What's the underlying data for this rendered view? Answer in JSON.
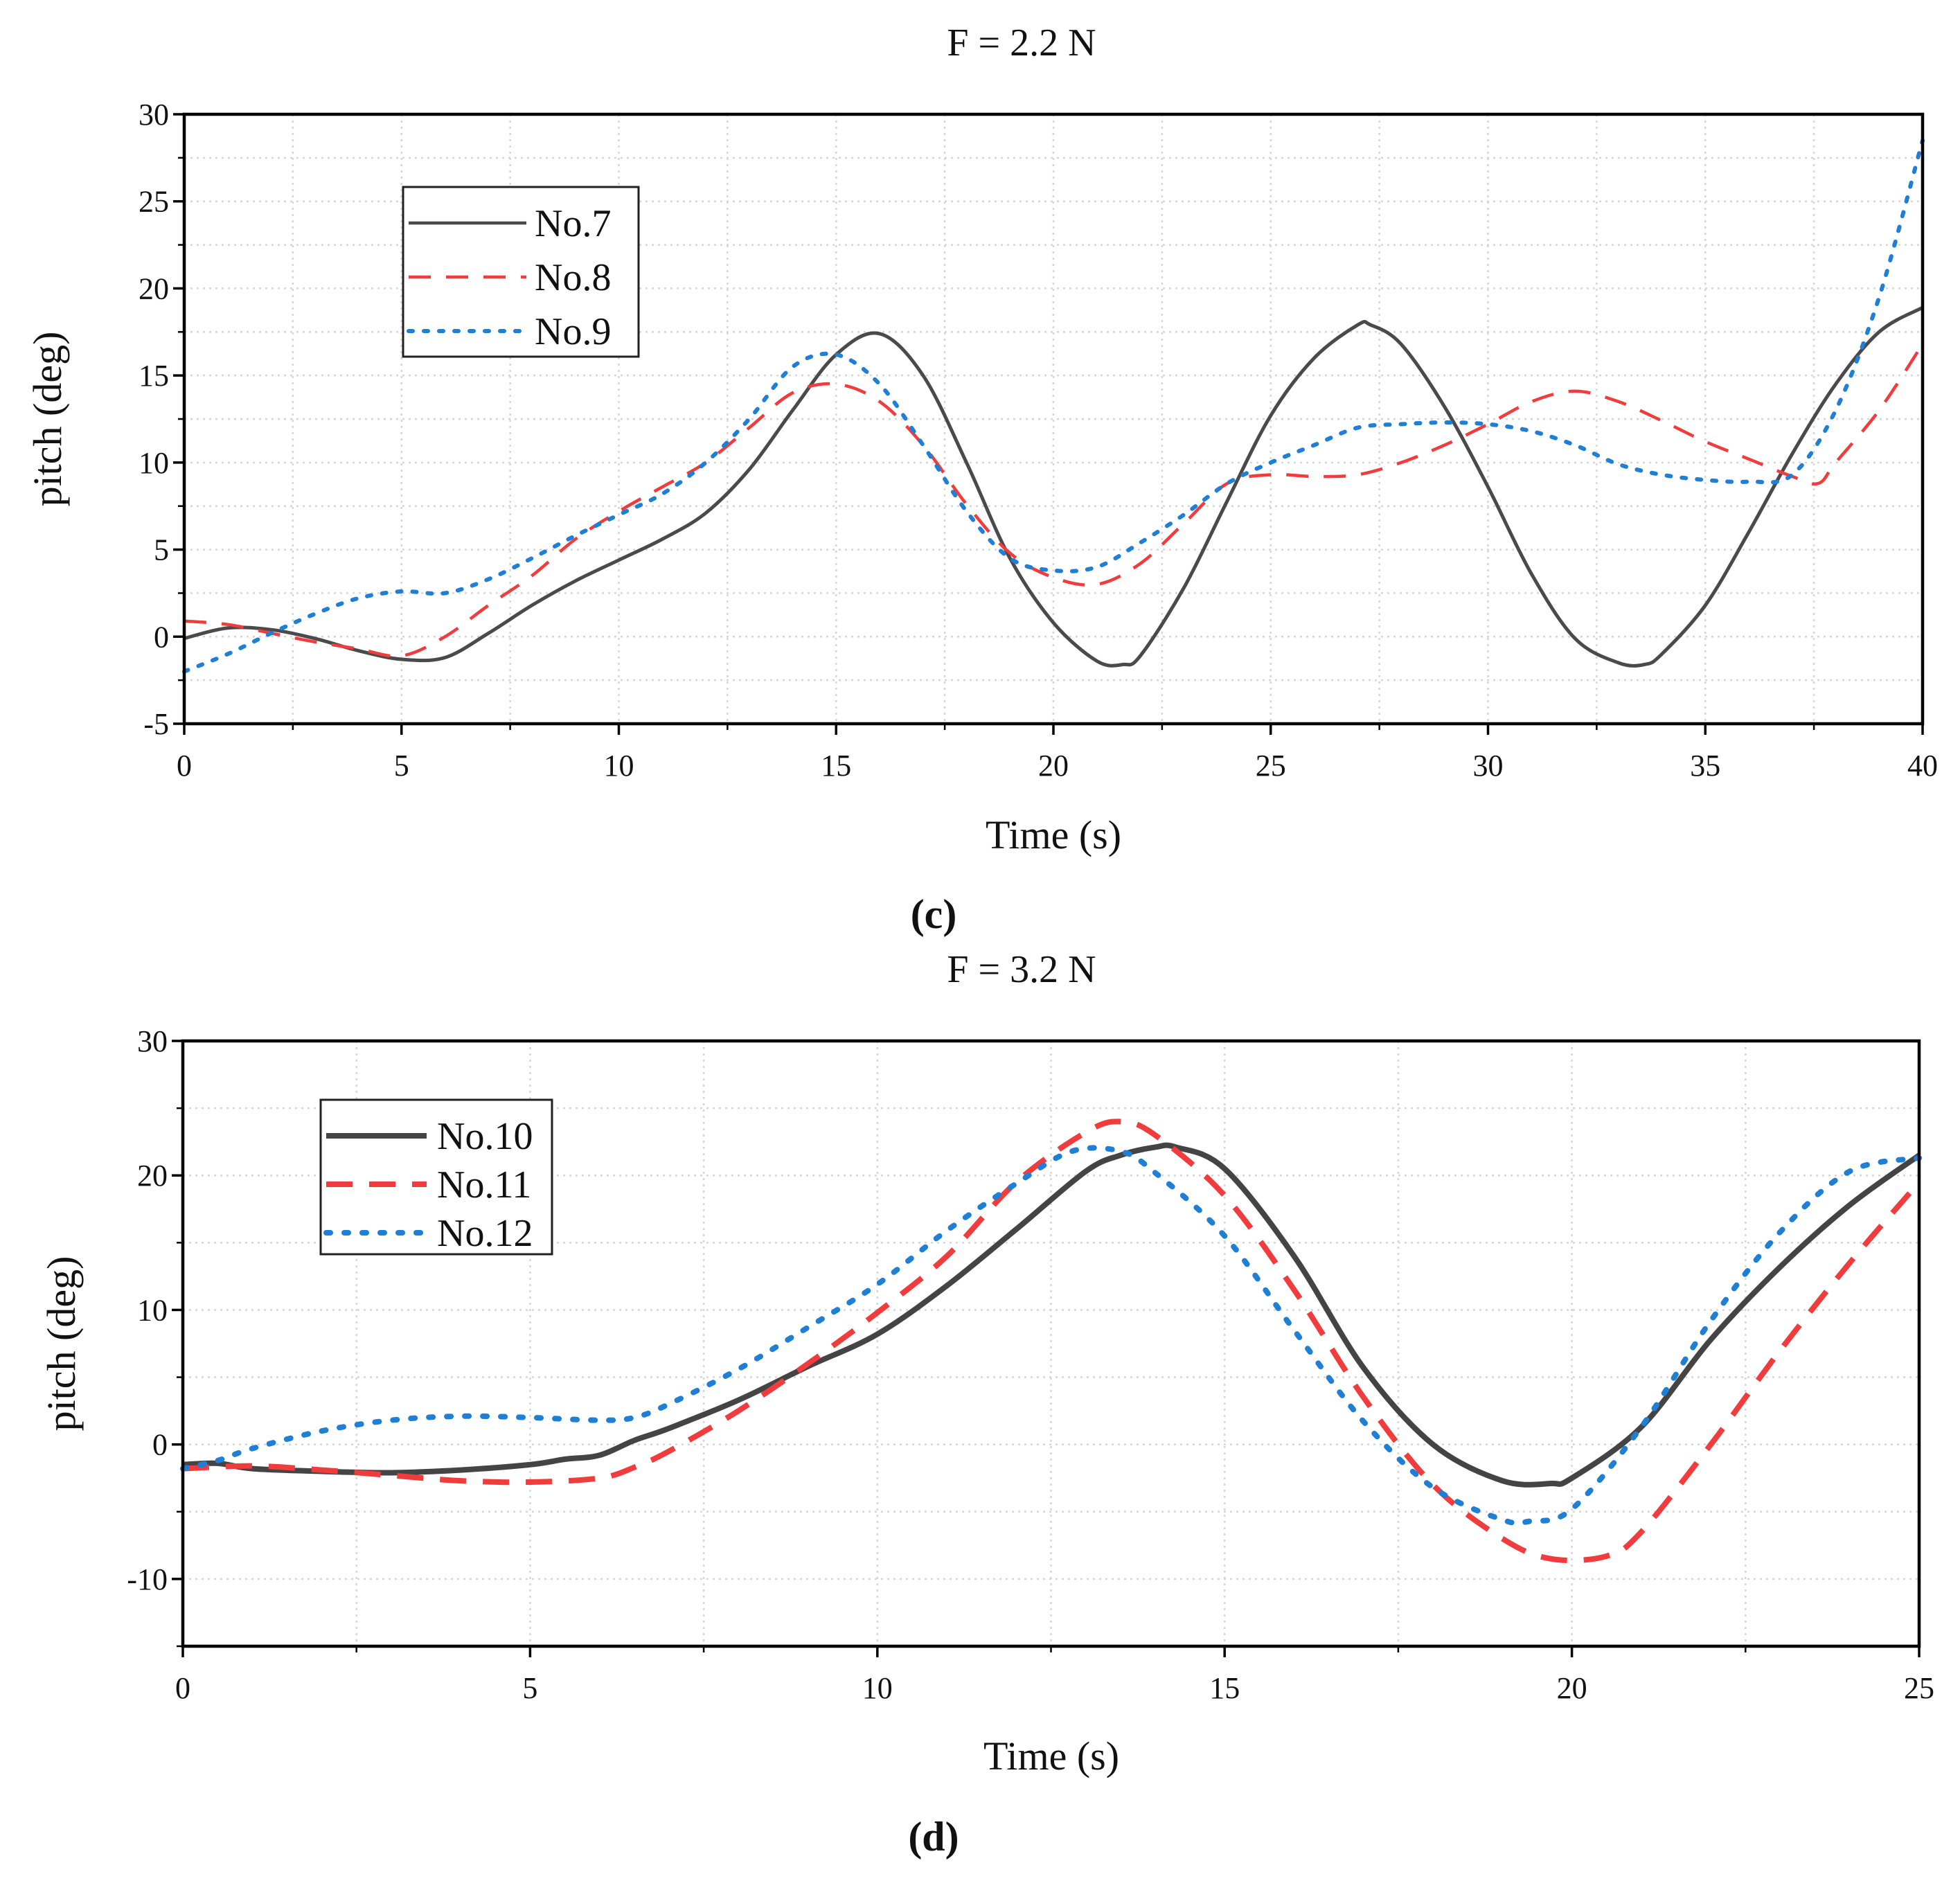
{
  "chart_data": [
    {
      "type": "line",
      "title": "F = 2.2 N",
      "panel_label": "(c)",
      "xlabel": "Time (s)",
      "ylabel": "pitch (deg)",
      "xlim": [
        0,
        40
      ],
      "ylim": [
        -5,
        30
      ],
      "xticks": [
        0,
        5,
        10,
        15,
        20,
        25,
        30,
        35,
        40
      ],
      "yticks": [
        -5,
        0,
        5,
        10,
        15,
        20,
        25,
        30
      ],
      "grid": true,
      "legend_position": "top-left",
      "series": [
        {
          "name": "No.7",
          "color": "#4a4a4a",
          "style": "solid",
          "x": [
            0,
            1,
            2,
            3,
            4,
            5,
            6,
            7,
            8,
            9,
            10,
            11,
            12,
            13,
            14,
            15,
            16,
            17,
            18,
            19,
            20,
            21,
            21.6,
            22,
            23,
            24,
            25,
            26,
            27,
            27.3,
            28,
            29,
            30,
            31,
            32,
            33,
            33.6,
            34,
            35,
            36,
            37,
            38,
            39,
            40
          ],
          "y": [
            -0.1,
            0.5,
            0.4,
            -0.1,
            -0.8,
            -1.3,
            -1.2,
            0.2,
            1.8,
            3.2,
            4.4,
            5.6,
            7.1,
            9.6,
            13.0,
            16.2,
            17.4,
            15.0,
            10.0,
            4.5,
            0.8,
            -1.4,
            -1.6,
            -1.1,
            2.8,
            7.8,
            12.7,
            16.0,
            17.9,
            17.9,
            16.8,
            13.2,
            8.6,
            3.6,
            -0.1,
            -1.5,
            -1.6,
            -1.0,
            1.8,
            6.0,
            10.5,
            14.5,
            17.5,
            18.9
          ]
        },
        {
          "name": "No.8",
          "color": "#f03c3c",
          "style": "dashed",
          "x": [
            0,
            1,
            2,
            3,
            4,
            5,
            6,
            7,
            8,
            9,
            10,
            11,
            12,
            13,
            14,
            15,
            16,
            17,
            18,
            19,
            20,
            21,
            22,
            23,
            24,
            25,
            26,
            27,
            28,
            29,
            30,
            31,
            32,
            33,
            34,
            35,
            36,
            37,
            37.6,
            38,
            39,
            40
          ],
          "y": [
            0.9,
            0.7,
            0.2,
            -0.3,
            -0.7,
            -1.1,
            0.0,
            1.8,
            3.5,
            5.6,
            7.2,
            8.6,
            10.0,
            12.0,
            14.0,
            14.5,
            13.5,
            11.0,
            7.6,
            4.8,
            3.4,
            3.0,
            4.2,
            6.5,
            8.8,
            9.3,
            9.2,
            9.3,
            10.0,
            11.0,
            12.2,
            13.5,
            14.1,
            13.5,
            12.4,
            11.2,
            10.2,
            9.2,
            8.8,
            10.0,
            13.0,
            16.8
          ]
        },
        {
          "name": "No.9",
          "color": "#1f7fd4",
          "style": "dotted",
          "x": [
            0,
            1,
            2,
            3,
            4,
            5,
            6,
            7,
            8,
            9,
            10,
            11,
            12,
            13,
            14,
            15,
            16,
            17,
            18,
            19,
            20,
            21,
            22,
            23,
            24,
            25,
            26,
            27,
            28,
            29,
            30,
            31,
            32,
            33,
            34,
            35,
            36,
            37,
            38,
            39,
            40
          ],
          "y": [
            -2.0,
            -1.0,
            0.2,
            1.3,
            2.2,
            2.6,
            2.5,
            3.3,
            4.5,
            5.8,
            7.0,
            8.2,
            10.0,
            12.5,
            15.5,
            16.2,
            14.5,
            11.0,
            7.2,
            4.5,
            3.8,
            4.0,
            5.4,
            7.0,
            8.8,
            10.0,
            11.0,
            12.0,
            12.2,
            12.3,
            12.2,
            11.8,
            11.0,
            9.9,
            9.3,
            9.0,
            8.9,
            9.3,
            13.0,
            19.5,
            28.5
          ]
        }
      ]
    },
    {
      "type": "line",
      "title": "F = 3.2 N",
      "panel_label": "(d)",
      "xlabel": "Time (s)",
      "ylabel": "pitch (deg)",
      "xlim": [
        0,
        25
      ],
      "ylim": [
        -15,
        30
      ],
      "xticks": [
        0,
        5,
        10,
        15,
        20,
        25
      ],
      "yticks": [
        -10,
        0,
        10,
        20,
        30
      ],
      "grid": true,
      "legend_position": "top-left",
      "series": [
        {
          "name": "No.10",
          "color": "#444444",
          "style": "solid",
          "x": [
            0,
            0.5,
            1,
            2,
            3,
            4,
            5,
            5.5,
            6,
            6.5,
            7,
            8,
            9,
            10,
            11,
            12,
            13,
            13.5,
            14,
            14.3,
            15,
            16,
            17,
            18,
            19,
            19.7,
            20,
            21,
            22,
            23,
            24,
            25
          ],
          "y": [
            -1.5,
            -1.4,
            -1.8,
            -2.0,
            -2.1,
            -1.9,
            -1.5,
            -1.1,
            -0.8,
            0.3,
            1.2,
            3.3,
            5.8,
            8.2,
            11.8,
            16.0,
            20.3,
            21.5,
            22.1,
            22.1,
            20.5,
            14.0,
            5.7,
            0.0,
            -2.7,
            -2.9,
            -2.5,
            1.3,
            7.8,
            13.2,
            17.8,
            21.5
          ]
        },
        {
          "name": "No.11",
          "color": "#f03c3c",
          "style": "dashed",
          "x": [
            0,
            1,
            2,
            3,
            4,
            5,
            6,
            6.5,
            7,
            8,
            9,
            10,
            11,
            12,
            13,
            13.5,
            14,
            15,
            16,
            17,
            18,
            19,
            19.7,
            20.5,
            21,
            22,
            23,
            24,
            25
          ],
          "y": [
            -1.8,
            -1.6,
            -1.9,
            -2.3,
            -2.7,
            -2.8,
            -2.5,
            -1.7,
            -0.5,
            2.5,
            6.0,
            9.8,
            14.0,
            19.5,
            23.2,
            24.0,
            23.0,
            18.5,
            11.5,
            3.5,
            -3.0,
            -7.0,
            -8.5,
            -8.3,
            -6.5,
            0.0,
            7.0,
            13.5,
            19.5
          ]
        },
        {
          "name": "No.12",
          "color": "#1f7fd4",
          "style": "dotted",
          "x": [
            0,
            0.5,
            1,
            2,
            3,
            4,
            5,
            6,
            6.5,
            7,
            8,
            9,
            10,
            11,
            12,
            12.8,
            13.5,
            14,
            15,
            16,
            17,
            18,
            19,
            19.4,
            20,
            21,
            22,
            23,
            24,
            25
          ],
          "y": [
            -1.8,
            -1.2,
            -0.3,
            1.0,
            1.8,
            2.1,
            2.0,
            1.8,
            2.0,
            3.0,
            5.6,
            8.7,
            11.9,
            15.9,
            19.4,
            21.8,
            21.8,
            20.2,
            15.5,
            8.5,
            1.7,
            -3.2,
            -5.6,
            -5.7,
            -4.8,
            1.3,
            9.2,
            15.8,
            20.3,
            21.3
          ]
        }
      ]
    }
  ]
}
